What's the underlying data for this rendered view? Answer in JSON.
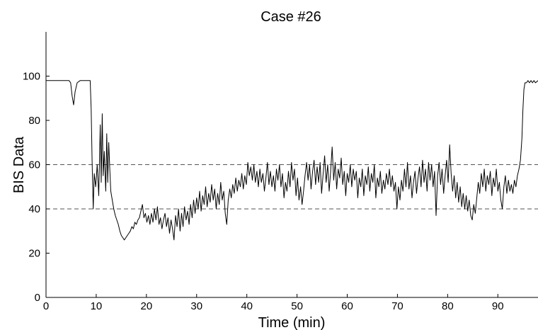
{
  "chart_data": {
    "type": "line",
    "title": "Case #26",
    "xlabel": "Time (min)",
    "ylabel": "BIS Data",
    "xlim": [
      0,
      98
    ],
    "ylim": [
      0,
      120
    ],
    "xticks": [
      0,
      10,
      20,
      30,
      40,
      50,
      60,
      70,
      80,
      90
    ],
    "yticks": [
      0,
      20,
      40,
      60,
      80,
      100
    ],
    "grid": false,
    "reference_lines": [
      {
        "y": 60,
        "style": "dashed",
        "color": "#555555"
      },
      {
        "y": 40,
        "style": "dashed",
        "color": "#555555"
      }
    ],
    "series": [
      {
        "color": "#000000",
        "points": [
          [
            0,
            98
          ],
          [
            1,
            98
          ],
          [
            2,
            98
          ],
          [
            3,
            98
          ],
          [
            4,
            98
          ],
          [
            4.6,
            98
          ],
          [
            4.9,
            97
          ],
          [
            5.2,
            91
          ],
          [
            5.5,
            87
          ],
          [
            5.8,
            93
          ],
          [
            6.2,
            97
          ],
          [
            6.8,
            98
          ],
          [
            7.5,
            98
          ],
          [
            8.2,
            98
          ],
          [
            8.8,
            98
          ],
          [
            9.0,
            85
          ],
          [
            9.2,
            60
          ],
          [
            9.4,
            40
          ],
          [
            9.6,
            56
          ],
          [
            9.9,
            50
          ],
          [
            10.2,
            60
          ],
          [
            10.5,
            46
          ],
          [
            10.8,
            78
          ],
          [
            11.0,
            52
          ],
          [
            11.2,
            83
          ],
          [
            11.4,
            55
          ],
          [
            11.6,
            66
          ],
          [
            11.9,
            48
          ],
          [
            12.1,
            74
          ],
          [
            12.3,
            52
          ],
          [
            12.5,
            70
          ],
          [
            12.7,
            58
          ],
          [
            12.9,
            48
          ],
          [
            13.2,
            44
          ],
          [
            13.5,
            40
          ],
          [
            13.8,
            37
          ],
          [
            14.1,
            35
          ],
          [
            14.4,
            33
          ],
          [
            14.7,
            30
          ],
          [
            15.0,
            28
          ],
          [
            15.3,
            27
          ],
          [
            15.6,
            26
          ],
          [
            15.9,
            27
          ],
          [
            16.2,
            28
          ],
          [
            16.5,
            29
          ],
          [
            16.8,
            30
          ],
          [
            17.1,
            32
          ],
          [
            17.4,
            31
          ],
          [
            17.7,
            34
          ],
          [
            18.0,
            33
          ],
          [
            18.3,
            35
          ],
          [
            18.6,
            36
          ],
          [
            18.9,
            39
          ],
          [
            19.2,
            42
          ],
          [
            19.5,
            36
          ],
          [
            19.8,
            38
          ],
          [
            20.1,
            34
          ],
          [
            20.4,
            37
          ],
          [
            20.7,
            33
          ],
          [
            21.0,
            38
          ],
          [
            21.3,
            34
          ],
          [
            21.6,
            40
          ],
          [
            21.9,
            35
          ],
          [
            22.2,
            41
          ],
          [
            22.5,
            33
          ],
          [
            22.8,
            36
          ],
          [
            23.1,
            31
          ],
          [
            23.4,
            35
          ],
          [
            23.7,
            38
          ],
          [
            24.0,
            32
          ],
          [
            24.3,
            36
          ],
          [
            24.6,
            29
          ],
          [
            24.9,
            35
          ],
          [
            25.2,
            31
          ],
          [
            25.5,
            26
          ],
          [
            25.8,
            37
          ],
          [
            26.1,
            32
          ],
          [
            26.4,
            40
          ],
          [
            26.7,
            30
          ],
          [
            27.0,
            38
          ],
          [
            27.3,
            32
          ],
          [
            27.6,
            41
          ],
          [
            27.9,
            35
          ],
          [
            28.2,
            39
          ],
          [
            28.5,
            33
          ],
          [
            28.8,
            42
          ],
          [
            29.1,
            36
          ],
          [
            29.4,
            44
          ],
          [
            29.7,
            38
          ],
          [
            30.0,
            45
          ],
          [
            30.3,
            40
          ],
          [
            30.6,
            48
          ],
          [
            30.9,
            39
          ],
          [
            31.2,
            46
          ],
          [
            31.5,
            42
          ],
          [
            31.8,
            50
          ],
          [
            32.1,
            41
          ],
          [
            32.4,
            47
          ],
          [
            32.7,
            43
          ],
          [
            33.0,
            51
          ],
          [
            33.3,
            44
          ],
          [
            33.6,
            49
          ],
          [
            33.9,
            40
          ],
          [
            34.2,
            47
          ],
          [
            34.5,
            42
          ],
          [
            34.8,
            52
          ],
          [
            35.1,
            44
          ],
          [
            35.4,
            48
          ],
          [
            35.7,
            38
          ],
          [
            36.0,
            33
          ],
          [
            36.3,
            44
          ],
          [
            36.6,
            49
          ],
          [
            36.9,
            45
          ],
          [
            37.2,
            51
          ],
          [
            37.5,
            47
          ],
          [
            37.8,
            54
          ],
          [
            38.1,
            48
          ],
          [
            38.4,
            53
          ],
          [
            38.7,
            50
          ],
          [
            39.0,
            56
          ],
          [
            39.3,
            49
          ],
          [
            39.6,
            55
          ],
          [
            39.9,
            51
          ],
          [
            40.2,
            61
          ],
          [
            40.5,
            55
          ],
          [
            40.8,
            59
          ],
          [
            41.1,
            53
          ],
          [
            41.4,
            60
          ],
          [
            41.7,
            52
          ],
          [
            42.0,
            57
          ],
          [
            42.3,
            50
          ],
          [
            42.6,
            58
          ],
          [
            42.9,
            52
          ],
          [
            43.2,
            56
          ],
          [
            43.5,
            48
          ],
          [
            43.8,
            54
          ],
          [
            44.1,
            61
          ],
          [
            44.4,
            51
          ],
          [
            44.7,
            57
          ],
          [
            45.0,
            50
          ],
          [
            45.3,
            55
          ],
          [
            45.6,
            48
          ],
          [
            45.9,
            58
          ],
          [
            46.2,
            53
          ],
          [
            46.5,
            60
          ],
          [
            46.8,
            50
          ],
          [
            47.1,
            56
          ],
          [
            47.4,
            45
          ],
          [
            47.7,
            52
          ],
          [
            48.0,
            48
          ],
          [
            48.3,
            57
          ],
          [
            48.6,
            50
          ],
          [
            48.9,
            61
          ],
          [
            49.2,
            53
          ],
          [
            49.5,
            58
          ],
          [
            49.8,
            46
          ],
          [
            50.1,
            54
          ],
          [
            50.4,
            44
          ],
          [
            50.7,
            50
          ],
          [
            51.0,
            42
          ],
          [
            51.3,
            48
          ],
          [
            51.6,
            55
          ],
          [
            51.9,
            61
          ],
          [
            52.2,
            53
          ],
          [
            52.5,
            60
          ],
          [
            52.8,
            49
          ],
          [
            53.1,
            57
          ],
          [
            53.4,
            62
          ],
          [
            53.7,
            51
          ],
          [
            54.0,
            59
          ],
          [
            54.3,
            52
          ],
          [
            54.6,
            61
          ],
          [
            54.9,
            47
          ],
          [
            55.2,
            56
          ],
          [
            55.5,
            64
          ],
          [
            55.8,
            52
          ],
          [
            56.1,
            60
          ],
          [
            56.4,
            48
          ],
          [
            56.7,
            57
          ],
          [
            57.0,
            68
          ],
          [
            57.3,
            53
          ],
          [
            57.6,
            61
          ],
          [
            57.9,
            49
          ],
          [
            58.2,
            58
          ],
          [
            58.5,
            54
          ],
          [
            58.8,
            63
          ],
          [
            59.1,
            51
          ],
          [
            59.4,
            57
          ],
          [
            59.7,
            46
          ],
          [
            60.0,
            56
          ],
          [
            60.3,
            52
          ],
          [
            60.6,
            60
          ],
          [
            60.9,
            50
          ],
          [
            61.2,
            58
          ],
          [
            61.5,
            53
          ],
          [
            61.8,
            57
          ],
          [
            62.1,
            45
          ],
          [
            62.4,
            54
          ],
          [
            62.7,
            50
          ],
          [
            63.0,
            58
          ],
          [
            63.3,
            46
          ],
          [
            63.6,
            55
          ],
          [
            63.9,
            51
          ],
          [
            64.2,
            59
          ],
          [
            64.5,
            48
          ],
          [
            64.8,
            56
          ],
          [
            65.1,
            52
          ],
          [
            65.4,
            60
          ],
          [
            65.7,
            45
          ],
          [
            66.0,
            54
          ],
          [
            66.3,
            50
          ],
          [
            66.6,
            57
          ],
          [
            66.9,
            47
          ],
          [
            67.2,
            53
          ],
          [
            67.5,
            49
          ],
          [
            67.8,
            56
          ],
          [
            68.1,
            51
          ],
          [
            68.4,
            58
          ],
          [
            68.7,
            50
          ],
          [
            69.0,
            55
          ],
          [
            69.3,
            48
          ],
          [
            69.6,
            52
          ],
          [
            69.9,
            40
          ],
          [
            70.2,
            50
          ],
          [
            70.5,
            44
          ],
          [
            70.8,
            53
          ],
          [
            71.1,
            48
          ],
          [
            71.4,
            58
          ],
          [
            71.7,
            50
          ],
          [
            72.0,
            61
          ],
          [
            72.3,
            49
          ],
          [
            72.6,
            55
          ],
          [
            72.9,
            45
          ],
          [
            73.2,
            52
          ],
          [
            73.5,
            57
          ],
          [
            73.8,
            47
          ],
          [
            74.1,
            54
          ],
          [
            74.4,
            59
          ],
          [
            74.7,
            50
          ],
          [
            75.0,
            62
          ],
          [
            75.3,
            52
          ],
          [
            75.6,
            58
          ],
          [
            75.9,
            48
          ],
          [
            76.2,
            61
          ],
          [
            76.5,
            53
          ],
          [
            76.8,
            60
          ],
          [
            77.1,
            50
          ],
          [
            77.4,
            57
          ],
          [
            77.7,
            37
          ],
          [
            78.0,
            55
          ],
          [
            78.3,
            61
          ],
          [
            78.6,
            51
          ],
          [
            78.9,
            58
          ],
          [
            79.2,
            47
          ],
          [
            79.5,
            55
          ],
          [
            79.8,
            62
          ],
          [
            80.1,
            52
          ],
          [
            80.4,
            69
          ],
          [
            80.7,
            56
          ],
          [
            81.0,
            48
          ],
          [
            81.3,
            55
          ],
          [
            81.6,
            45
          ],
          [
            81.9,
            52
          ],
          [
            82.2,
            43
          ],
          [
            82.5,
            50
          ],
          [
            82.8,
            41
          ],
          [
            83.1,
            47
          ],
          [
            83.4,
            40
          ],
          [
            83.7,
            46
          ],
          [
            84.0,
            39
          ],
          [
            84.3,
            44
          ],
          [
            84.6,
            37
          ],
          [
            84.9,
            35
          ],
          [
            85.2,
            42
          ],
          [
            85.5,
            38
          ],
          [
            85.8,
            45
          ],
          [
            86.1,
            52
          ],
          [
            86.4,
            47
          ],
          [
            86.7,
            56
          ],
          [
            87.0,
            50
          ],
          [
            87.3,
            58
          ],
          [
            87.6,
            48
          ],
          [
            87.9,
            55
          ],
          [
            88.2,
            51
          ],
          [
            88.5,
            57
          ],
          [
            88.8,
            46
          ],
          [
            89.1,
            54
          ],
          [
            89.4,
            50
          ],
          [
            89.7,
            58
          ],
          [
            90.0,
            48
          ],
          [
            90.3,
            52
          ],
          [
            90.6,
            44
          ],
          [
            90.9,
            40
          ],
          [
            91.2,
            50
          ],
          [
            91.5,
            55
          ],
          [
            91.8,
            47
          ],
          [
            92.1,
            53
          ],
          [
            92.4,
            48
          ],
          [
            92.7,
            51
          ],
          [
            93.0,
            47
          ],
          [
            93.3,
            53
          ],
          [
            93.6,
            50
          ],
          [
            93.9,
            55
          ],
          [
            94.2,
            58
          ],
          [
            94.5,
            62
          ],
          [
            94.8,
            72
          ],
          [
            95.0,
            85
          ],
          [
            95.2,
            94
          ],
          [
            95.4,
            97
          ],
          [
            95.7,
            97
          ],
          [
            96.0,
            98
          ],
          [
            96.3,
            97
          ],
          [
            96.6,
            98
          ],
          [
            96.9,
            97
          ],
          [
            97.2,
            98
          ],
          [
            97.5,
            97
          ],
          [
            98.0,
            98
          ]
        ]
      }
    ]
  }
}
